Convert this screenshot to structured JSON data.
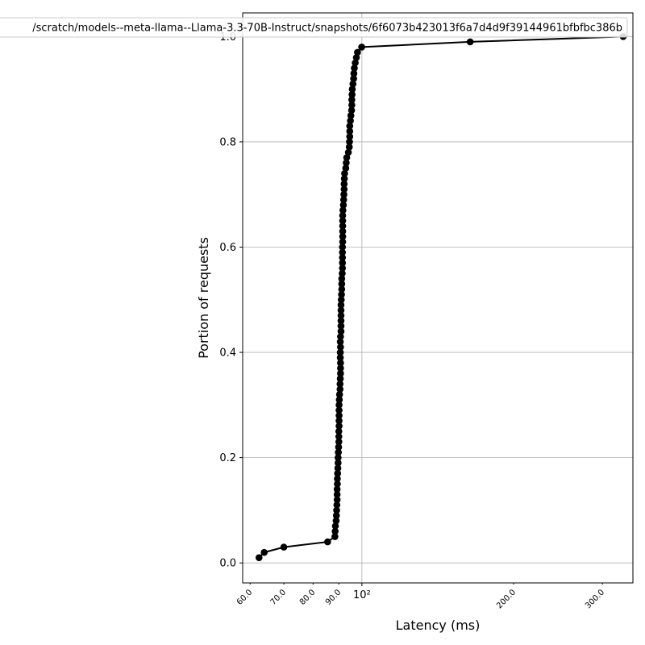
{
  "chart_data": {
    "type": "line",
    "xscale": "log",
    "xlabel": "Latency (ms)",
    "ylabel": "Portion of requests",
    "xlim": [
      58,
      345
    ],
    "ylim": [
      -0.038,
      1.045
    ],
    "grid": true,
    "legend_position": "top",
    "y_ticks": [
      "0.0",
      "0.2",
      "0.4",
      "0.6",
      "0.8",
      "1.0"
    ],
    "x_ticks": [
      {
        "value": 60,
        "label": "60.0"
      },
      {
        "value": 70,
        "label": "70.0"
      },
      {
        "value": 80,
        "label": "80.0"
      },
      {
        "value": 90,
        "label": "90.0"
      },
      {
        "value": 100,
        "label": "10²"
      },
      {
        "value": 200,
        "label": "200.0"
      },
      {
        "value": 300,
        "label": "300.0"
      }
    ],
    "series": [
      {
        "name": "/scratch/models--meta-llama--Llama-3.3-70B-Instruct/snapshots/6f6073b423013f6a7d4d9f39144961bfbfbc386b",
        "color": "#000000",
        "marker": "circle",
        "points": [
          [
            62.5,
            0.01
          ],
          [
            64.0,
            0.02
          ],
          [
            70.0,
            0.03
          ],
          [
            85.5,
            0.04
          ],
          [
            88.4,
            0.05
          ],
          [
            88.5,
            0.06
          ],
          [
            88.6,
            0.07
          ],
          [
            88.9,
            0.08
          ],
          [
            89.0,
            0.09
          ],
          [
            89.1,
            0.1
          ],
          [
            89.2,
            0.11
          ],
          [
            89.3,
            0.12
          ],
          [
            89.3,
            0.13
          ],
          [
            89.3,
            0.14
          ],
          [
            89.4,
            0.15
          ],
          [
            89.4,
            0.16
          ],
          [
            89.5,
            0.17
          ],
          [
            89.6,
            0.18
          ],
          [
            89.7,
            0.19
          ],
          [
            89.7,
            0.2
          ],
          [
            89.8,
            0.21
          ],
          [
            89.9,
            0.22
          ],
          [
            90.0,
            0.23
          ],
          [
            90.0,
            0.24
          ],
          [
            90.0,
            0.25
          ],
          [
            90.1,
            0.26
          ],
          [
            90.1,
            0.27
          ],
          [
            90.1,
            0.28
          ],
          [
            90.1,
            0.29
          ],
          [
            90.1,
            0.3
          ],
          [
            90.2,
            0.31
          ],
          [
            90.3,
            0.32
          ],
          [
            90.5,
            0.33
          ],
          [
            90.5,
            0.34
          ],
          [
            90.6,
            0.35
          ],
          [
            90.7,
            0.36
          ],
          [
            90.7,
            0.37
          ],
          [
            90.7,
            0.38
          ],
          [
            90.6,
            0.39
          ],
          [
            90.6,
            0.4
          ],
          [
            90.7,
            0.41
          ],
          [
            90.6,
            0.42
          ],
          [
            90.7,
            0.43
          ],
          [
            90.9,
            0.44
          ],
          [
            90.9,
            0.45
          ],
          [
            90.9,
            0.46
          ],
          [
            90.9,
            0.47
          ],
          [
            90.9,
            0.48
          ],
          [
            90.9,
            0.49
          ],
          [
            91.0,
            0.5
          ],
          [
            91.1,
            0.51
          ],
          [
            91.2,
            0.52
          ],
          [
            91.2,
            0.53
          ],
          [
            91.2,
            0.54
          ],
          [
            91.4,
            0.55
          ],
          [
            91.5,
            0.56
          ],
          [
            91.5,
            0.57
          ],
          [
            91.5,
            0.58
          ],
          [
            91.5,
            0.59
          ],
          [
            91.5,
            0.6
          ],
          [
            91.6,
            0.61
          ],
          [
            91.6,
            0.62
          ],
          [
            91.6,
            0.63
          ],
          [
            91.6,
            0.64
          ],
          [
            91.6,
            0.65
          ],
          [
            91.6,
            0.66
          ],
          [
            91.7,
            0.67
          ],
          [
            91.9,
            0.68
          ],
          [
            92.0,
            0.69
          ],
          [
            92.1,
            0.7
          ],
          [
            92.2,
            0.71
          ],
          [
            92.2,
            0.72
          ],
          [
            92.3,
            0.73
          ],
          [
            92.4,
            0.74
          ],
          [
            92.9,
            0.75
          ],
          [
            93.1,
            0.76
          ],
          [
            93.3,
            0.77
          ],
          [
            94.0,
            0.78
          ],
          [
            94.4,
            0.79
          ],
          [
            94.5,
            0.8
          ],
          [
            94.6,
            0.81
          ],
          [
            94.6,
            0.82
          ],
          [
            94.6,
            0.83
          ],
          [
            94.9,
            0.84
          ],
          [
            95.1,
            0.85
          ],
          [
            95.4,
            0.86
          ],
          [
            95.5,
            0.87
          ],
          [
            95.5,
            0.88
          ],
          [
            95.6,
            0.89
          ],
          [
            95.7,
            0.9
          ],
          [
            96.0,
            0.91
          ],
          [
            96.3,
            0.92
          ],
          [
            96.4,
            0.93
          ],
          [
            96.6,
            0.94
          ],
          [
            97.0,
            0.95
          ],
          [
            97.5,
            0.96
          ],
          [
            98.0,
            0.97
          ],
          [
            99.9,
            0.98
          ],
          [
            164.0,
            0.99
          ],
          [
            330.0,
            1.0
          ]
        ]
      }
    ]
  }
}
